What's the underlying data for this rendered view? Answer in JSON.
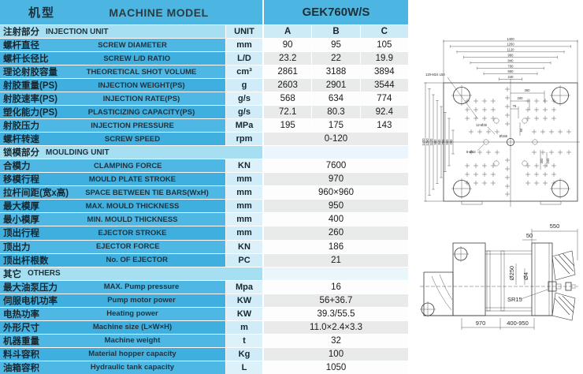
{
  "header": {
    "model_label_cn": "机型",
    "model_label_en": "MACHINE MODEL",
    "model_value": "GEK760W/S"
  },
  "table": {
    "rows": [
      {
        "type": "section",
        "cn": "注射部分",
        "en": "INJECTION UNIT",
        "unit": "UNIT",
        "cols": [
          "A",
          "B",
          "C"
        ]
      },
      {
        "type": "data",
        "cn": "螺杆直径",
        "en": "SCREW DIAMETER",
        "unit": "mm",
        "values": [
          "90",
          "95",
          "105"
        ]
      },
      {
        "type": "data",
        "cn": "螺杆长径比",
        "en": "SCREW L/D RATIO",
        "unit": "L/D",
        "values": [
          "23.2",
          "22",
          "19.9"
        ]
      },
      {
        "type": "data",
        "cn": "理论射胶容量",
        "en": "THEORETICAL SHOT VOLUME",
        "unit": "cm³",
        "values": [
          "2861",
          "3188",
          "3894"
        ]
      },
      {
        "type": "data",
        "cn": "射胶重量(PS)",
        "en": "INJECTION WEIGHT(PS)",
        "unit": "g",
        "values": [
          "2603",
          "2901",
          "3544"
        ]
      },
      {
        "type": "data",
        "cn": "射胶速率(PS)",
        "en": "INJECTION RATE(PS)",
        "unit": "g/s",
        "values": [
          "568",
          "634",
          "774"
        ]
      },
      {
        "type": "data",
        "cn": "塑化能力(PS)",
        "en": "PLASTICIZING CAPACITY(PS)",
        "unit": "g/s",
        "values": [
          "72.1",
          "80.3",
          "92.4"
        ]
      },
      {
        "type": "data",
        "cn": "射胶压力",
        "en": "INJECTION PRESSURE",
        "unit": "MPa",
        "values": [
          "195",
          "175",
          "143"
        ]
      },
      {
        "type": "data",
        "cn": "螺杆转速",
        "en": "SCREW SPEED",
        "unit": "rpm",
        "values": [
          "0-120"
        ]
      },
      {
        "type": "section",
        "cn": "锁模部分",
        "en": "MOULDING UNIT"
      },
      {
        "type": "data",
        "cn": "合模力",
        "en": "CLAMPING FORCE",
        "unit": "KN",
        "values": [
          "7600"
        ]
      },
      {
        "type": "data",
        "cn": "移模行程",
        "en": "MOULD PLATE STROKE",
        "unit": "mm",
        "values": [
          "970"
        ]
      },
      {
        "type": "data",
        "cn": "拉杆间距(宽x高)",
        "en": "SPACE BETWEEN TIE BARS(WxH)",
        "unit": "mm",
        "values": [
          "960×960"
        ]
      },
      {
        "type": "data",
        "cn": "最大模厚",
        "en": "MAX. MOULD THICKNESS",
        "unit": "mm",
        "values": [
          "950"
        ]
      },
      {
        "type": "data",
        "cn": "最小模厚",
        "en": "MIN. MOULD THICKNESS",
        "unit": "mm",
        "values": [
          "400"
        ]
      },
      {
        "type": "data",
        "cn": "顶出行程",
        "en": "EJECTOR STROKE",
        "unit": "mm",
        "values": [
          "260"
        ]
      },
      {
        "type": "data",
        "cn": "顶出力",
        "en": "EJECTOR FORCE",
        "unit": "KN",
        "values": [
          "186"
        ]
      },
      {
        "type": "data",
        "cn": "顶出杆根数",
        "en": "No. OF EJECTOR",
        "unit": "PC",
        "values": [
          "21"
        ]
      },
      {
        "type": "section",
        "cn": "其它",
        "en": "OTHERS"
      },
      {
        "type": "data",
        "cn": "最大油泵压力",
        "en": "MAX. Pump pressure",
        "unit": "Mpa",
        "values": [
          "16"
        ]
      },
      {
        "type": "data",
        "cn": "伺服电机功率",
        "en": "Pump motor power",
        "unit": "KW",
        "values": [
          "56+36.7"
        ]
      },
      {
        "type": "data",
        "cn": "电热功率",
        "en": "Heating power",
        "unit": "KW",
        "values": [
          "39.3/55.5"
        ]
      },
      {
        "type": "data",
        "cn": "外形尺寸",
        "en": "Machine size (L×W×H)",
        "unit": "m",
        "values": [
          "11.0×2.4×3.3"
        ]
      },
      {
        "type": "data",
        "cn": "机器重量",
        "en": "Machine weight",
        "unit": "t",
        "values": [
          "32"
        ]
      },
      {
        "type": "data",
        "cn": "料斗容积",
        "en": "Material hopper capacity",
        "unit": "Kg",
        "values": [
          "100"
        ]
      },
      {
        "type": "data",
        "cn": "油箱容积",
        "en": "Hydraulic tank capacity",
        "unit": "L",
        "values": [
          "1050"
        ]
      }
    ]
  },
  "diagram": {
    "front_view": {
      "thread_callout": "120-M24 L50",
      "top_dims": [
        "1400",
        "1260",
        "1120",
        "980",
        "840",
        "700",
        "560",
        "240"
      ],
      "left_dims": [
        "1400",
        "1260",
        "1120",
        "980",
        "840",
        "700",
        "560",
        "280"
      ],
      "step_dims": [
        "350",
        "200",
        "75",
        "50"
      ],
      "side_dims": [
        "300",
        "240"
      ],
      "hole_callout_a": "12-Ø35",
      "hole_callout_b": "8-Ø63",
      "center_hole": "Ø155"
    },
    "side_view": {
      "overall_550": "550",
      "offset_50": "50",
      "locating_ring": "Ø250",
      "nozzle_hole": "Ø4",
      "nozzle_radius": "SR15",
      "stroke_970": "970",
      "mould_range": "400-950"
    }
  },
  "colors": {
    "header_blue": "#4cb5e2",
    "label_blue_light": "#4fb7e3",
    "label_blue_dark": "#3fafe0",
    "section_blue": "#a6def2",
    "unit_blue": "#ddf1fb",
    "value_gray": "#e9eaea",
    "value_white": "#fdfdfd"
  }
}
